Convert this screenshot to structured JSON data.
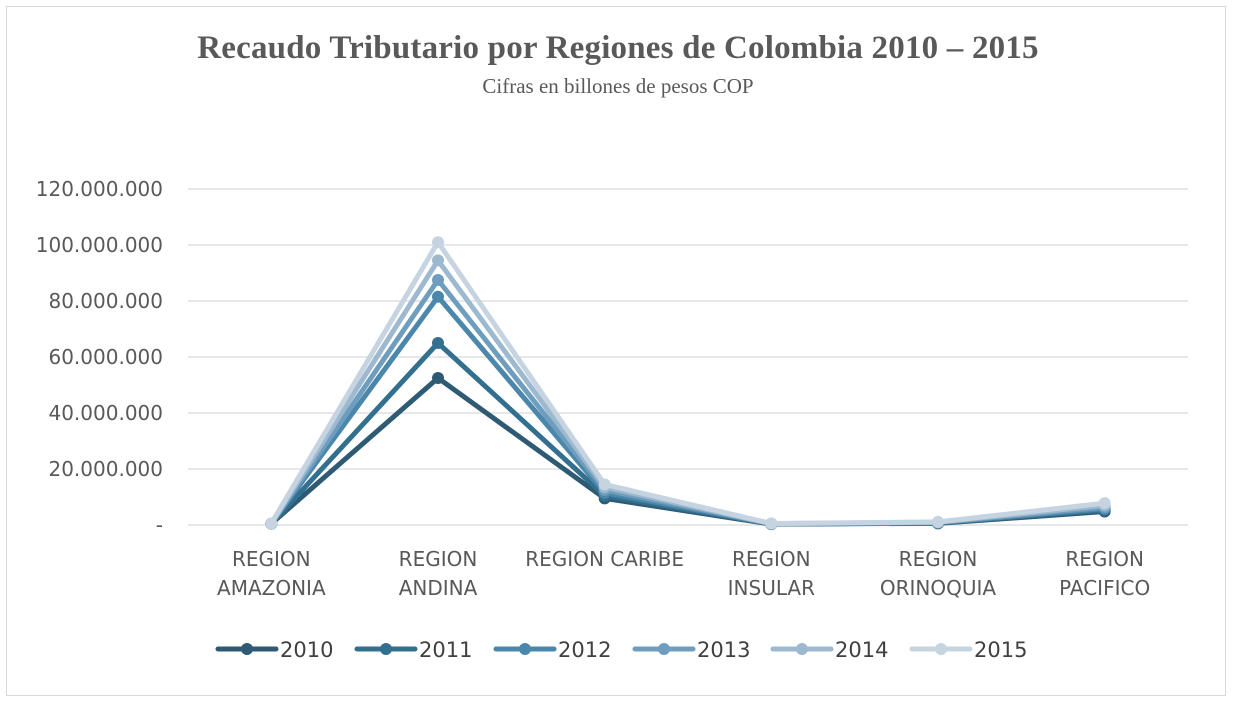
{
  "chart_data": {
    "type": "line",
    "title": "Recaudo Tributario por Regiones de Colombia 2010 – 2015",
    "subtitle": "Cifras en billones de pesos COP",
    "categories": [
      [
        "REGION",
        "AMAZONIA"
      ],
      [
        "REGION",
        "ANDINA"
      ],
      [
        "REGION CARIBE"
      ],
      [
        "REGION",
        "INSULAR"
      ],
      [
        "REGION",
        "ORINOQUIA"
      ],
      [
        "REGION",
        "PACIFICO"
      ]
    ],
    "ylim": [
      0,
      120000000
    ],
    "yticks": [
      {
        "value": 0,
        "label": "-"
      },
      {
        "value": 20000000,
        "label": "20.000.000"
      },
      {
        "value": 40000000,
        "label": "40.000.000"
      },
      {
        "value": 60000000,
        "label": "60.000.000"
      },
      {
        "value": 80000000,
        "label": "80.000.000"
      },
      {
        "value": 100000000,
        "label": "100.000.000"
      },
      {
        "value": 120000000,
        "label": "120.000.000"
      }
    ],
    "grid": true,
    "legend": "bottom",
    "series": [
      {
        "name": "2010",
        "color": "#2e5a73",
        "values": [
          500000,
          52500000,
          9500000,
          300000,
          600000,
          4800000
        ]
      },
      {
        "name": "2011",
        "color": "#336f8f",
        "values": [
          500000,
          65000000,
          10500000,
          350000,
          700000,
          5300000
        ]
      },
      {
        "name": "2012",
        "color": "#4a87aa",
        "values": [
          500000,
          81500000,
          11500000,
          400000,
          800000,
          5800000
        ]
      },
      {
        "name": "2013",
        "color": "#6f9dbd",
        "values": [
          500000,
          87500000,
          12500000,
          450000,
          900000,
          6300000
        ]
      },
      {
        "name": "2014",
        "color": "#9db9d0",
        "values": [
          500000,
          94500000,
          13500000,
          500000,
          1000000,
          7000000
        ]
      },
      {
        "name": "2015",
        "color": "#c6d4e1",
        "values": [
          600000,
          101000000,
          14500000,
          550000,
          1100000,
          7800000
        ]
      }
    ]
  }
}
